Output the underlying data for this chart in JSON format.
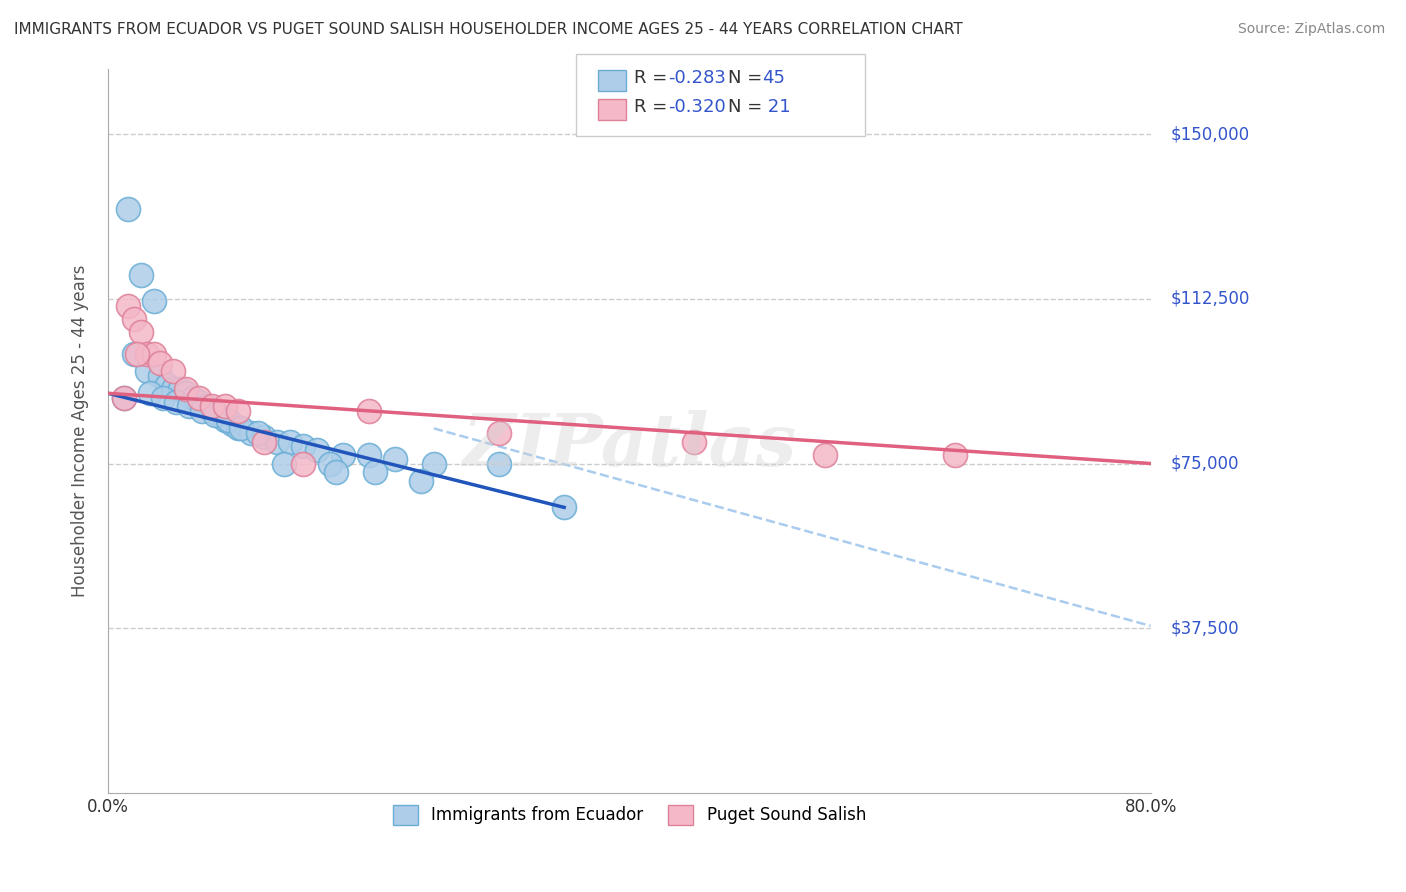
{
  "title": "IMMIGRANTS FROM ECUADOR VS PUGET SOUND SALISH HOUSEHOLDER INCOME AGES 25 - 44 YEARS CORRELATION CHART",
  "source": "Source: ZipAtlas.com",
  "ylabel": "Householder Income Ages 25 - 44 years",
  "xlim": [
    0.0,
    80.0
  ],
  "ylim": [
    0,
    165000
  ],
  "watermark": "ZIPatlas",
  "series1_color": "#aecde8",
  "series1_edge": "#6aaed6",
  "series2_color": "#f4b8c8",
  "series2_edge": "#de8098",
  "line1_color": "#2255bb",
  "line2_color": "#e06080",
  "dashed_color": "#aaccee",
  "legend_text_color": "#3355cc",
  "right_label_color": "#3355cc",
  "blue_dots_x": [
    1.5,
    2.5,
    3.5,
    1.2,
    2.0,
    3.0,
    4.0,
    4.5,
    5.0,
    5.5,
    6.0,
    6.5,
    7.0,
    7.5,
    8.0,
    8.5,
    9.0,
    9.5,
    10.0,
    11.0,
    12.0,
    13.0,
    14.0,
    15.0,
    16.0,
    18.0,
    20.0,
    22.0,
    25.0,
    3.2,
    4.2,
    5.2,
    6.2,
    7.2,
    8.2,
    9.2,
    10.2,
    11.5,
    13.5,
    17.0,
    30.0,
    35.0,
    17.5,
    20.5,
    24.0
  ],
  "blue_dots_y": [
    133000,
    118000,
    112000,
    90000,
    100000,
    96000,
    95000,
    93000,
    92000,
    92000,
    91000,
    90000,
    89000,
    88000,
    87000,
    86000,
    85000,
    84000,
    83000,
    82000,
    81000,
    80000,
    80000,
    79000,
    78000,
    77000,
    77000,
    76000,
    75000,
    91000,
    90000,
    89000,
    88000,
    87000,
    86000,
    85000,
    83000,
    82000,
    75000,
    75000,
    75000,
    65000,
    73000,
    73000,
    71000
  ],
  "pink_dots_x": [
    1.5,
    2.0,
    2.5,
    3.0,
    3.5,
    4.0,
    5.0,
    6.0,
    7.0,
    8.0,
    9.0,
    10.0,
    12.0,
    15.0,
    20.0,
    30.0,
    45.0,
    55.0,
    65.0,
    1.2,
    2.2
  ],
  "pink_dots_y": [
    111000,
    108000,
    105000,
    100000,
    100000,
    98000,
    96000,
    92000,
    90000,
    88000,
    88000,
    87000,
    80000,
    75000,
    87000,
    82000,
    80000,
    77000,
    77000,
    90000,
    100000
  ],
  "blue_line_x0": 0,
  "blue_line_x1": 35,
  "blue_line_y0": 91000,
  "blue_line_y1": 65000,
  "pink_line_x0": 0,
  "pink_line_x1": 80,
  "pink_line_y0": 91000,
  "pink_line_y1": 75000,
  "dash_line_x0": 25,
  "dash_line_x1": 80,
  "dash_line_y0": 83000,
  "dash_line_y1": 38000
}
